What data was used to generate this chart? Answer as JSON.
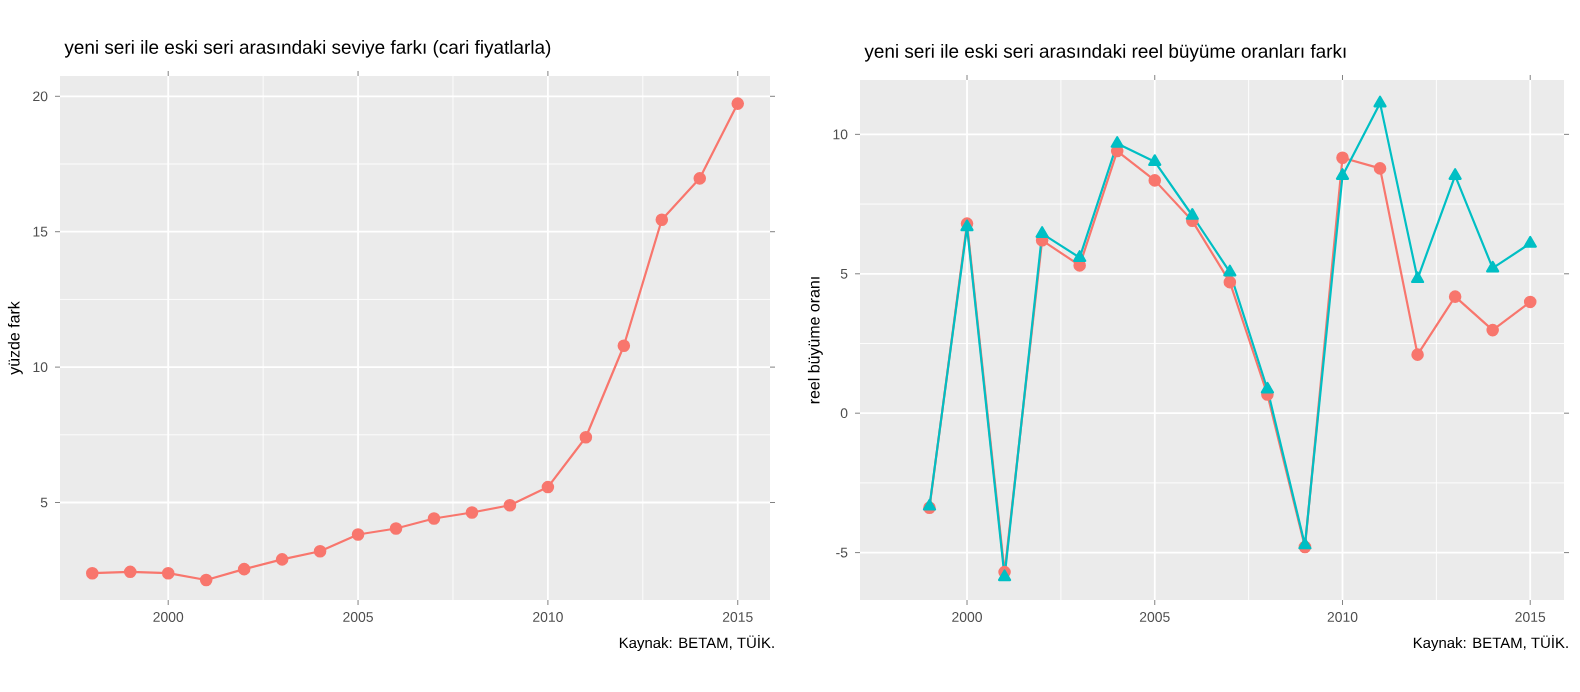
{
  "chart_data": [
    {
      "type": "line",
      "title": "yeni seri ile eski seri arasındaki seviye farkı (cari fiyatlarla)",
      "ylabel": "yüzde fark",
      "x": [
        1998,
        1999,
        2000,
        2001,
        2002,
        2003,
        2004,
        2005,
        2006,
        2007,
        2008,
        2009,
        2010,
        2011,
        2012,
        2013,
        2014,
        2015
      ],
      "series": [
        {
          "color": "#F8766D",
          "marker": "circle",
          "values": [
            2.39,
            2.44,
            2.39,
            2.14,
            2.54,
            2.9,
            3.2,
            3.82,
            4.04,
            4.41,
            4.63,
            4.9,
            5.57,
            7.41,
            10.79,
            15.44,
            16.97,
            19.73
          ]
        }
      ],
      "xlim": [
        1997.15,
        2015.85
      ],
      "ylim": [
        1.4,
        20.75
      ],
      "xticks": [
        2000,
        2005,
        2010,
        2015
      ],
      "yticks": [
        5,
        10,
        15,
        20
      ],
      "grid": true,
      "annotations": [
        "Kaynak: BETAM, TÜİK."
      ]
    },
    {
      "type": "line",
      "title": "yeni seri ile eski seri arasındaki reel büyüme oranları farkı",
      "ylabel": "reel büyüme oranı",
      "x": [
        1999,
        2000,
        2001,
        2002,
        2003,
        2004,
        2005,
        2006,
        2007,
        2008,
        2009,
        2010,
        2011,
        2012,
        2013,
        2014,
        2015
      ],
      "series": [
        {
          "color": "#F8766D",
          "marker": "circle",
          "values": [
            -3.39,
            6.8,
            -5.7,
            6.2,
            5.3,
            9.4,
            8.35,
            6.9,
            4.7,
            0.67,
            -4.8,
            9.16,
            8.78,
            2.1,
            4.18,
            2.98,
            3.99
          ]
        },
        {
          "color": "#00BFC4",
          "marker": "triangle",
          "values": [
            -3.34,
            6.68,
            -5.87,
            6.44,
            5.58,
            9.67,
            9.02,
            7.09,
            5.06,
            0.86,
            -4.73,
            8.52,
            11.12,
            4.82,
            8.52,
            5.2,
            6.09
          ]
        }
      ],
      "xlim": [
        1997.15,
        2015.9
      ],
      "ylim": [
        -6.7,
        11.95
      ],
      "xticks": [
        2000,
        2005,
        2010,
        2015
      ],
      "yticks": [
        -5,
        0,
        5,
        10
      ],
      "grid": true,
      "annotations": [
        "Kaynak: BETAM, TÜİK."
      ]
    }
  ]
}
